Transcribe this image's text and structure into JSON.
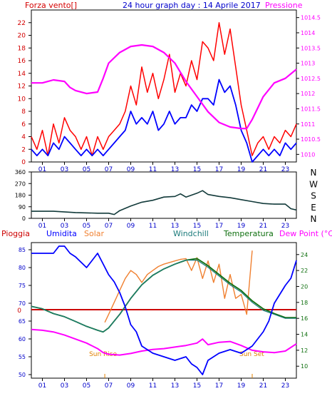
{
  "page": {
    "title": "24 hour graph day : 14 Aprile 2017",
    "legend_left": "Forza vento[]",
    "legend_right": "Pressione"
  },
  "colors": {
    "frame": "#000000",
    "label_red": "#d40000",
    "tick_blue": "#0000cc",
    "wind_gust": "#ff0000",
    "wind_avg": "#0000ff",
    "pressure": "#ff00ff",
    "direction": "#123a3a",
    "humidity": "#0000ff",
    "solar": "#f08030",
    "windchill": "#1a7a7a",
    "temperature": "#107010",
    "dewpoint": "#ff00ff",
    "rain": "#cc0000",
    "sun_label": "#e08000"
  },
  "x_ticks": [
    "01",
    "03",
    "05",
    "07",
    "09",
    "11",
    "13",
    "15",
    "17",
    "19",
    "21",
    "23"
  ],
  "chart_data": [
    {
      "type": "line",
      "title": "24 hour graph day : 14 Aprile 2017",
      "xlabel": "",
      "ylabel": "Forza vento[]",
      "y2label": "Pressione",
      "xlim": [
        0,
        24
      ],
      "ylim": [
        0,
        24
      ],
      "y_ticks": [
        0,
        2,
        4,
        6,
        8,
        10,
        12,
        14,
        16,
        18,
        20,
        22
      ],
      "y2lim": [
        1009.75,
        1014.75
      ],
      "y2_ticks": [
        1010,
        1010.5,
        1011,
        1011.5,
        1012,
        1012.5,
        1013,
        1013.5,
        1014,
        1014.5
      ],
      "series": [
        {
          "name": "Forza vento",
          "axis": "left",
          "color_key": "wind_gust",
          "x": [
            0,
            0.5,
            1,
            1.5,
            2,
            2.5,
            3,
            3.5,
            4,
            4.5,
            5,
            5.5,
            6,
            6.5,
            7,
            7.5,
            8,
            8.5,
            9,
            9.5,
            10,
            10.5,
            11,
            11.5,
            12,
            12.5,
            13,
            13.5,
            14,
            14.5,
            15,
            15.5,
            16,
            16.5,
            17,
            17.5,
            18,
            18.5,
            19,
            19.5,
            20,
            20.5,
            21,
            21.5,
            22,
            22.5,
            23,
            23.5,
            24
          ],
          "values": [
            4,
            2,
            5,
            1,
            6,
            3,
            7,
            5,
            4,
            2,
            4,
            1,
            4,
            2,
            4,
            5,
            6,
            8,
            12,
            9,
            15,
            11,
            14,
            10,
            13,
            17,
            11,
            14,
            12,
            16,
            13,
            19,
            18,
            16,
            22,
            17,
            21,
            15,
            9,
            5,
            1,
            3,
            4,
            2,
            4,
            3,
            5,
            4,
            6
          ]
        },
        {
          "name": "",
          "axis": "left",
          "color_key": "wind_avg",
          "x": [
            0,
            0.5,
            1,
            1.5,
            2,
            2.5,
            3,
            3.5,
            4,
            4.5,
            5,
            5.5,
            6,
            6.5,
            7,
            7.5,
            8,
            8.5,
            9,
            9.5,
            10,
            10.5,
            11,
            11.5,
            12,
            12.5,
            13,
            13.5,
            14,
            14.5,
            15,
            15.5,
            16,
            16.5,
            17,
            17.5,
            18,
            18.5,
            19,
            19.5,
            20,
            20.5,
            21,
            21.5,
            22,
            22.5,
            23,
            23.5,
            24
          ],
          "values": [
            2,
            1,
            2,
            1,
            3,
            2,
            4,
            3,
            2,
            1,
            2,
            1,
            2,
            1,
            2,
            3,
            4,
            5,
            8,
            6,
            7,
            6,
            8,
            5,
            6,
            8,
            6,
            7,
            7,
            9,
            8,
            10,
            10,
            9,
            13,
            11,
            12,
            9,
            5,
            3,
            0,
            1,
            2,
            1,
            2,
            1,
            3,
            2,
            3
          ]
        },
        {
          "name": "Pressione",
          "axis": "right",
          "color_key": "pressure",
          "x": [
            0,
            1,
            2,
            3,
            3.5,
            4,
            5,
            6,
            6.5,
            7,
            8,
            9,
            10,
            11,
            12,
            13,
            14,
            15,
            16,
            17,
            18,
            19,
            19.5,
            20,
            21,
            22,
            23,
            24
          ],
          "values": [
            1012.35,
            1012.35,
            1012.45,
            1012.4,
            1012.2,
            1012.1,
            1012.0,
            1012.05,
            1012.5,
            1013.0,
            1013.35,
            1013.55,
            1013.6,
            1013.55,
            1013.35,
            1013.0,
            1012.4,
            1011.9,
            1011.4,
            1011.05,
            1010.9,
            1010.85,
            1010.85,
            1011.15,
            1011.9,
            1012.35,
            1012.5,
            1012.8
          ]
        }
      ]
    },
    {
      "type": "line",
      "title": "",
      "xlim": [
        0,
        24
      ],
      "ylim": [
        0,
        360
      ],
      "y_ticks": [
        0,
        90,
        180,
        270,
        360
      ],
      "y2_labels": [
        "N",
        "W",
        "S",
        "E",
        "N"
      ],
      "series": [
        {
          "name": "",
          "color_key": "direction",
          "x": [
            0,
            2,
            4,
            6,
            7,
            7.5,
            8,
            9,
            10,
            11,
            12,
            13,
            13.5,
            14,
            15,
            15.5,
            16,
            17,
            18,
            19,
            20,
            21,
            22,
            23,
            23.5,
            24
          ],
          "values": [
            55,
            55,
            45,
            40,
            40,
            30,
            60,
            95,
            125,
            140,
            165,
            170,
            190,
            165,
            195,
            215,
            185,
            170,
            160,
            145,
            130,
            115,
            110,
            110,
            75,
            65
          ]
        }
      ]
    },
    {
      "type": "line",
      "title": "",
      "left_labels": [
        "Pioggia",
        "Umidita"
      ],
      "top_labels": [
        "Solar",
        "Windchill",
        "Temperatura",
        "Dew Point (°C)"
      ],
      "xlim": [
        0,
        24
      ],
      "ylim": [
        49,
        87
      ],
      "y_ticks": [
        50,
        55,
        60,
        65,
        70,
        75,
        80,
        85
      ],
      "y2lim": [
        8.5,
        25.5
      ],
      "y2_ticks": [
        10,
        12,
        14,
        16,
        18,
        20,
        22,
        24
      ],
      "rain_label": "0",
      "annotations": [
        {
          "text": "Sun Rise",
          "x": 6.65
        },
        {
          "text": "Sun Set",
          "x": 20.0
        }
      ],
      "series": [
        {
          "name": "Umidita",
          "axis": "left",
          "color_key": "humidity",
          "x": [
            0,
            1,
            2,
            2.5,
            3,
            3.5,
            4,
            5,
            5.5,
            6,
            6.5,
            7,
            7.5,
            8,
            8.5,
            9,
            9.5,
            10,
            11,
            12,
            13,
            14,
            14.5,
            15,
            15.5,
            16,
            17,
            18,
            19,
            20,
            21,
            21.5,
            22,
            23,
            23.5,
            24
          ],
          "values": [
            84,
            84,
            84,
            86,
            86,
            84,
            83,
            80,
            82,
            84,
            81,
            78,
            76,
            73,
            69,
            64,
            62,
            58,
            56,
            55,
            54,
            55,
            53,
            52,
            50,
            54,
            56,
            57,
            56,
            58,
            62,
            65,
            70,
            75,
            77,
            82
          ]
        },
        {
          "name": "Solar",
          "axis": "right",
          "color_key": "solar",
          "x": [
            6.65,
            7,
            7.5,
            8,
            8.5,
            9,
            9.5,
            10,
            10.5,
            11,
            11.5,
            12,
            12.5,
            13,
            13.5,
            14,
            14.5,
            15,
            15.5,
            16,
            16.5,
            17,
            17.5,
            18,
            18.5,
            19,
            19.5,
            20
          ],
          "values": [
            15.5,
            16.5,
            18,
            19.5,
            21,
            22,
            21.5,
            20.5,
            21.5,
            22,
            22.5,
            22.8,
            23,
            23.2,
            23.4,
            23.5,
            22,
            23.6,
            21,
            23.2,
            20.5,
            22.8,
            18.5,
            21.5,
            18.5,
            19,
            16.5,
            24.5
          ]
        },
        {
          "name": "Windchill",
          "axis": "right",
          "color_key": "windchill",
          "x": [
            0,
            1,
            2,
            3,
            4,
            5,
            6,
            6.5,
            7,
            8,
            9,
            10,
            11,
            12,
            13,
            14,
            15,
            16,
            17,
            18,
            19,
            20,
            21,
            22,
            23,
            24
          ],
          "values": [
            17.5,
            17.2,
            16.6,
            16.2,
            15.6,
            15,
            14.5,
            14.3,
            14.8,
            16.5,
            18.5,
            20.2,
            21.4,
            22.2,
            22.8,
            23.3,
            23.3,
            22.4,
            21.3,
            20.2,
            19.3,
            18,
            17,
            16.5,
            16,
            16
          ]
        },
        {
          "name": "Temperatura",
          "axis": "right",
          "color_key": "temperature",
          "x": [
            0,
            1,
            2,
            3,
            4,
            5,
            6,
            6.5,
            7,
            8,
            9,
            10,
            11,
            12,
            13,
            14,
            15,
            16,
            17,
            18,
            19,
            20,
            21,
            22,
            23,
            24
          ],
          "values": [
            17.5,
            17.2,
            16.6,
            16.2,
            15.6,
            15,
            14.5,
            14.3,
            14.8,
            16.5,
            18.5,
            20.2,
            21.4,
            22.2,
            22.8,
            23.3,
            23.5,
            22.6,
            21.5,
            20.4,
            19.5,
            18.2,
            17.2,
            16.6,
            16.1,
            16.1
          ]
        },
        {
          "name": "Dew Point (°C)",
          "axis": "right",
          "color_key": "dewpoint",
          "x": [
            0,
            1,
            2,
            3,
            4,
            5,
            6,
            6.5,
            7,
            8,
            9,
            10,
            11,
            12,
            13,
            14,
            15,
            15.5,
            16,
            17,
            18,
            19,
            20,
            21,
            22,
            23,
            24
          ],
          "values": [
            14.6,
            14.5,
            14.3,
            13.9,
            13.4,
            12.9,
            12.2,
            11.7,
            11.5,
            11.4,
            11.6,
            11.9,
            12.1,
            12.2,
            12.4,
            12.6,
            12.9,
            13.4,
            12.7,
            13,
            13.1,
            12.6,
            12,
            11.8,
            11.7,
            11.9,
            12.8
          ]
        }
      ]
    }
  ]
}
